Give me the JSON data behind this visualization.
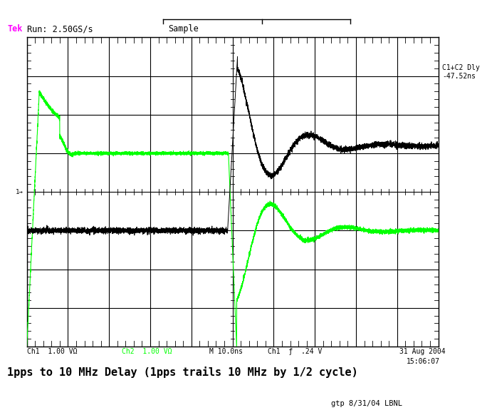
{
  "bg_color": "#ffffff",
  "scope_bg": "#ffffff",
  "title_tek": "Tek",
  "title_run": " Run: 2.50GS/s",
  "title_sample": "Sample",
  "c1c2_label": "C1+C2 Dly\n-47.52ns",
  "green_color": "#00ff00",
  "black_color": "#000000",
  "magenta_color": "#ff00ff",
  "xlim": [
    -5,
    5
  ],
  "ylim": [
    -4,
    4
  ],
  "nx_divs": 10,
  "ny_divs": 8,
  "ch1_baseline_y": -1.0,
  "ch2_baseline_y": 1.0,
  "trigger_level_y": 0.0,
  "main_title": "1pps to 10 MHz Delay (1pps trails 10 MHz by 1/2 cycle)",
  "sub_label": "gtp 8/31/04 LBNL",
  "date_label": "31 Aug 2004\n15:06:07",
  "bottom_ch1": "Ch1  1.00 VΩ",
  "bottom_ch2": "Ch2  1.00 VΩ",
  "bottom_m": "M 10.0ns",
  "bottom_trig": "Ch1  ƒ  .24 V"
}
